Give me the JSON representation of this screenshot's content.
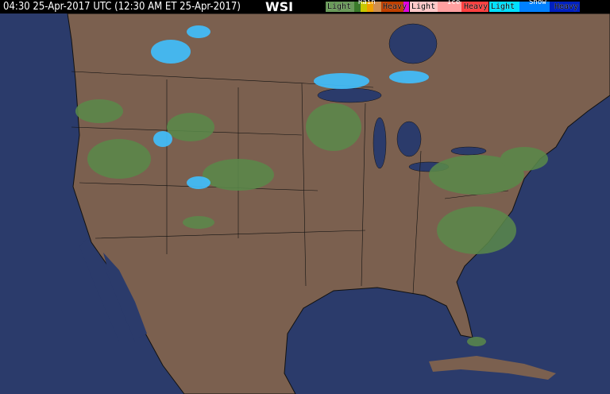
{
  "header": {
    "timestamp": "04:30 25-Apr-2017 UTC  (12:30 AM ET 25-Apr-2017)",
    "logo": "WSI"
  },
  "legend": {
    "rain": {
      "title": "Rain",
      "light": "Light",
      "heavy": "Heavy",
      "colors": [
        "#6a9a5a",
        "#4a8a3a",
        "#2a6a1a",
        "#c8c800",
        "#f0a000",
        "#d08040",
        "#c04000",
        "#e000e0"
      ]
    },
    "ice": {
      "title": "Ice",
      "light": "Light",
      "heavy": "Heavy",
      "colors": [
        "#ffc8c8",
        "#ffa0a0",
        "#ff7070",
        "#ff3030"
      ]
    },
    "snow": {
      "title": "Snow",
      "light": "Light",
      "heavy": "Heavy",
      "colors": [
        "#00e0ff",
        "#00a0ff",
        "#0060ff",
        "#0020c0"
      ]
    }
  },
  "colors": {
    "ocean": "#2b3b6b",
    "land": "#7b604f",
    "border": "#000000"
  }
}
